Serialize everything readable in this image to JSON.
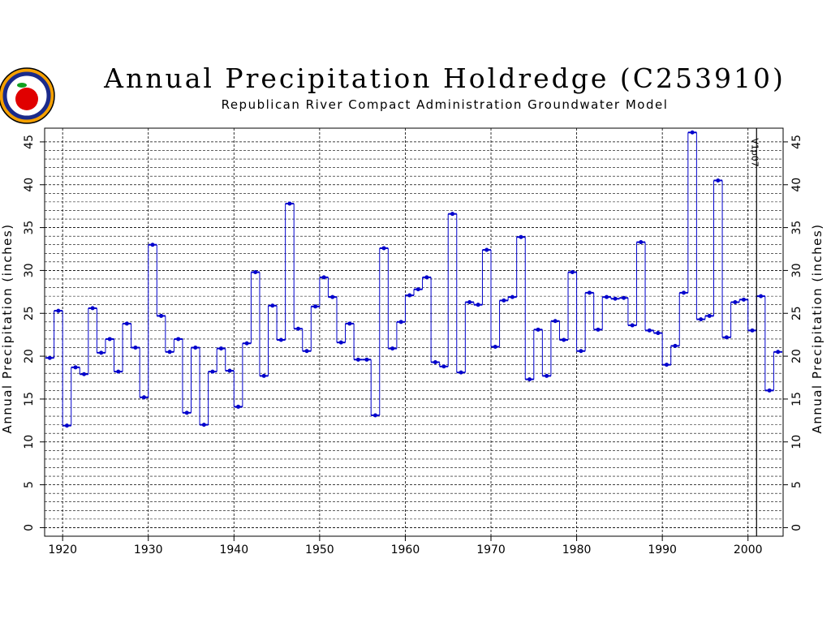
{
  "chart_data": {
    "type": "step",
    "title": "Annual Precipitation Holdredge (C253910)",
    "subtitle": "Republican River Compact Administration Groundwater Model",
    "ylabel": "Annual Precipitation (inches)",
    "y2label": "Annual Precipitation (inches)",
    "x": [
      1918,
      1919,
      1920,
      1921,
      1922,
      1923,
      1924,
      1925,
      1926,
      1927,
      1928,
      1929,
      1930,
      1931,
      1932,
      1933,
      1934,
      1935,
      1936,
      1937,
      1938,
      1939,
      1940,
      1941,
      1942,
      1943,
      1944,
      1945,
      1946,
      1947,
      1948,
      1949,
      1950,
      1951,
      1952,
      1953,
      1954,
      1955,
      1956,
      1957,
      1958,
      1959,
      1960,
      1961,
      1962,
      1963,
      1964,
      1965,
      1966,
      1967,
      1968,
      1969,
      1970,
      1971,
      1972,
      1973,
      1974,
      1975,
      1976,
      1977,
      1978,
      1979,
      1980,
      1981,
      1982,
      1983,
      1984,
      1985,
      1986,
      1987,
      1988,
      1989,
      1990,
      1991,
      1992,
      1993,
      1994,
      1995,
      1996,
      1997,
      1998,
      1999,
      2000,
      2001,
      2002,
      2003
    ],
    "series": [
      {
        "name": "Annual Precipitation",
        "color": "#0000cc",
        "values": [
          19.8,
          25.3,
          11.9,
          18.7,
          17.9,
          25.6,
          20.4,
          22.0,
          18.2,
          23.8,
          21.0,
          15.2,
          33.0,
          24.7,
          20.5,
          22.0,
          13.4,
          21.0,
          12.0,
          18.2,
          20.9,
          18.3,
          14.1,
          21.5,
          29.8,
          17.7,
          25.9,
          21.9,
          37.8,
          23.2,
          20.6,
          25.8,
          29.2,
          26.9,
          21.6,
          23.8,
          19.6,
          19.6,
          13.1,
          32.6,
          20.9,
          24.0,
          27.1,
          27.8,
          29.2,
          19.3,
          18.8,
          36.6,
          18.1,
          26.3,
          26.0,
          32.4,
          21.1,
          26.5,
          26.9,
          33.9,
          17.3,
          23.1,
          17.7,
          24.1,
          21.9,
          29.8,
          20.6,
          27.4,
          23.1,
          26.9,
          26.7,
          26.8,
          23.6,
          33.3,
          23.0,
          22.7,
          19.0,
          21.2,
          27.4,
          46.1,
          24.3,
          24.7,
          40.5,
          22.2,
          26.3,
          26.6,
          23.0,
          27.0,
          16.0,
          20.5
        ]
      }
    ],
    "xlim": [
      1917.9,
      2004.1
    ],
    "xticks": [
      1920,
      1930,
      1940,
      1950,
      1960,
      1970,
      1980,
      1990,
      2000
    ],
    "ylim": [
      -1,
      46.6
    ],
    "yticks": [
      0,
      5,
      10,
      15,
      20,
      25,
      30,
      35,
      40,
      45
    ],
    "grid": true,
    "minor_grid": true,
    "annotations": [
      {
        "text": "V1p07",
        "x": 2001
      }
    ]
  }
}
